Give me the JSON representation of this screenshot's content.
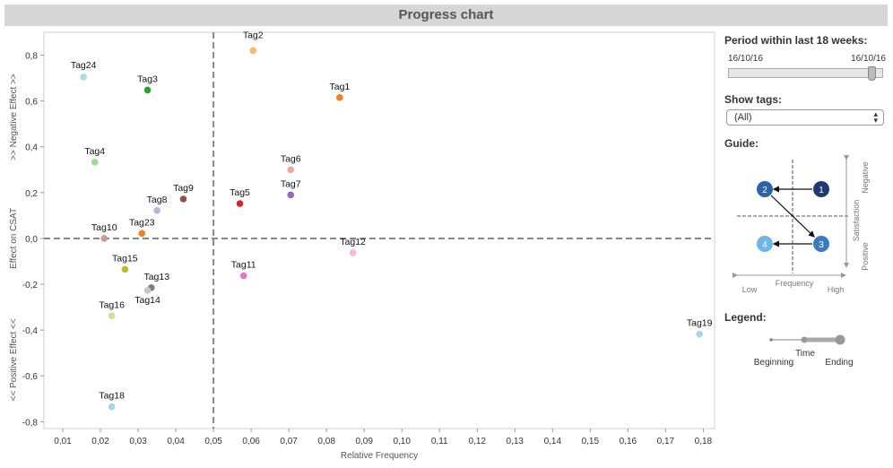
{
  "title": "Progress chart",
  "chart_data": {
    "type": "scatter",
    "title": "Progress chart",
    "xlabel": "Relative Frequency",
    "ylabel": "Effect on CSAT",
    "ylabel_top": ">> Negative Effect >>",
    "ylabel_bottom": "<< Positive Effect <<",
    "xlim": [
      0.005,
      0.183
    ],
    "ylim": [
      -0.83,
      0.9
    ],
    "x_ticks": [
      0.01,
      0.02,
      0.03,
      0.04,
      0.05,
      0.06,
      0.07,
      0.08,
      0.09,
      0.1,
      0.11,
      0.12,
      0.13,
      0.14,
      0.15,
      0.16,
      0.17,
      0.18
    ],
    "x_tick_labels": [
      "0,01",
      "0,02",
      "0,03",
      "0,04",
      "0,05",
      "0,06",
      "0,07",
      "0,08",
      "0,09",
      "0,10",
      "0,11",
      "0,12",
      "0,13",
      "0,14",
      "0,15",
      "0,16",
      "0,17",
      "0,18"
    ],
    "y_ticks": [
      0.8,
      0.6,
      0.4,
      0.2,
      0.0,
      -0.2,
      -0.4,
      -0.6,
      -0.8
    ],
    "y_tick_labels": [
      "0,8",
      "0,6",
      "0,4",
      "0,2",
      "0,0",
      "-0,2",
      "-0,4",
      "-0,6",
      "-0,8"
    ],
    "ref_lines": {
      "x": 0.05,
      "y": 0.0
    },
    "grid": false,
    "points": [
      {
        "label": "Tag2",
        "x": 0.0605,
        "y": 0.82,
        "color": "#f7b96d",
        "lx": 0,
        "ly": -14
      },
      {
        "label": "Tag24",
        "x": 0.0155,
        "y": 0.705,
        "color": "#a9dbe8",
        "lx": 0,
        "ly": -10
      },
      {
        "label": "Tag3",
        "x": 0.0325,
        "y": 0.648,
        "color": "#2ca02c",
        "lx": 0,
        "ly": -9
      },
      {
        "label": "Tag1",
        "x": 0.0835,
        "y": 0.615,
        "color": "#f28220",
        "lx": 0,
        "ly": -9
      },
      {
        "label": "Tag4",
        "x": 0.0185,
        "y": 0.333,
        "color": "#98df8a",
        "lx": 0,
        "ly": -9
      },
      {
        "label": "Tag6",
        "x": 0.0705,
        "y": 0.3,
        "color": "#f4a5a5",
        "lx": 0,
        "ly": -9
      },
      {
        "label": "Tag7",
        "x": 0.0705,
        "y": 0.19,
        "color": "#9467bd",
        "lx": 0,
        "ly": -9
      },
      {
        "label": "Tag9",
        "x": 0.042,
        "y": 0.172,
        "color": "#8c564b",
        "lx": 0,
        "ly": -9
      },
      {
        "label": "Tag8",
        "x": 0.035,
        "y": 0.122,
        "color": "#c5b0d5",
        "lx": 0,
        "ly": -9
      },
      {
        "label": "Tag5",
        "x": 0.057,
        "y": 0.152,
        "color": "#d62728",
        "lx": 0,
        "ly": -9
      },
      {
        "label": "Tag23",
        "x": 0.031,
        "y": 0.022,
        "color": "#f28220",
        "lx": 0,
        "ly": -9
      },
      {
        "label": "Tag10",
        "x": 0.021,
        "y": 0.0,
        "color": "#c49c94",
        "lx": 0,
        "ly": -9
      },
      {
        "label": "Tag12",
        "x": 0.087,
        "y": -0.063,
        "color": "#f7b6d2",
        "lx": 0,
        "ly": -9
      },
      {
        "label": "Tag15",
        "x": 0.0265,
        "y": -0.135,
        "color": "#bcbd22",
        "lx": 0,
        "ly": -9
      },
      {
        "label": "Tag11",
        "x": 0.058,
        "y": -0.163,
        "color": "#e377c2",
        "lx": 0,
        "ly": -9
      },
      {
        "label": "Tag13",
        "x": 0.0335,
        "y": -0.215,
        "color": "#7f7f7f",
        "lx": 6,
        "ly": -9
      },
      {
        "label": "Tag14",
        "x": 0.0325,
        "y": -0.227,
        "color": "#c7c7c7",
        "lx": 0,
        "ly": 14
      },
      {
        "label": "Tag16",
        "x": 0.023,
        "y": -0.338,
        "color": "#dbdb8d",
        "lx": 0,
        "ly": -9
      },
      {
        "label": "Tag19",
        "x": 0.179,
        "y": -0.418,
        "color": "#9edae5",
        "lx": 0,
        "ly": -9
      },
      {
        "label": "Tag18",
        "x": 0.023,
        "y": -0.735,
        "color": "#9edae5",
        "lx": 0,
        "ly": -9
      }
    ]
  },
  "sidebar": {
    "period_title": "Period within last 18 weeks:",
    "date_start": "16/10/16",
    "date_end": "16/10/16",
    "show_tags_title": "Show tags:",
    "show_tags_value": "(All)",
    "guide_title": "Guide:",
    "guide": {
      "node1": "1",
      "node2": "2",
      "node3": "3",
      "node4": "4",
      "axis_low": "Low",
      "axis_frequency": "Frequency",
      "axis_high": "High",
      "axis_negative": "Negative",
      "axis_satisfaction": "Satisfaction",
      "axis_positive": "Positive",
      "colors": {
        "node1": "#1f3b6e",
        "node2": "#2b63a8",
        "node3": "#3a7bbf",
        "node4": "#6db6e6"
      }
    },
    "legend_title": "Legend:",
    "legend": {
      "beginning": "Beginning",
      "time": "Time",
      "ending": "Ending"
    }
  }
}
